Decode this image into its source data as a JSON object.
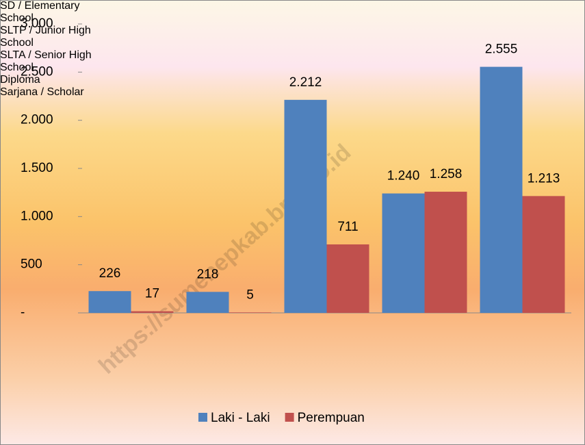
{
  "chart_data": {
    "type": "bar",
    "categories": [
      "SD  /\nElementary\nSchool",
      "SLTP / Junior\nHigh School",
      "SLTA /\nSenior High\nSchool",
      "Diploma",
      "Sarjana /\nScholar"
    ],
    "series": [
      {
        "name": "Laki - Laki",
        "color": "#4f81bd",
        "values": [
          226,
          218,
          2212,
          1240,
          2555
        ],
        "value_labels": [
          "226",
          "218",
          "2.212",
          "1.240",
          "2.555"
        ]
      },
      {
        "name": "Perempuan",
        "color": "#c0504d",
        "values": [
          17,
          5,
          711,
          1258,
          1213
        ],
        "value_labels": [
          "17",
          "5",
          "711",
          "1.258",
          "1.213"
        ]
      }
    ],
    "ylim": [
      0,
      3000
    ],
    "yticks": [
      {
        "value": 0,
        "label": "-"
      },
      500,
      {
        "value": 1000,
        "label": "1.000"
      },
      {
        "value": 1500,
        "label": "1.500"
      },
      {
        "value": 2000,
        "label": "2.000"
      },
      {
        "value": 2500,
        "label": "2.500"
      },
      {
        "value": 3000,
        "label": "3.000"
      }
    ],
    "legend": "bottom",
    "watermark": "https://sumenepkab.bps.go.id"
  }
}
